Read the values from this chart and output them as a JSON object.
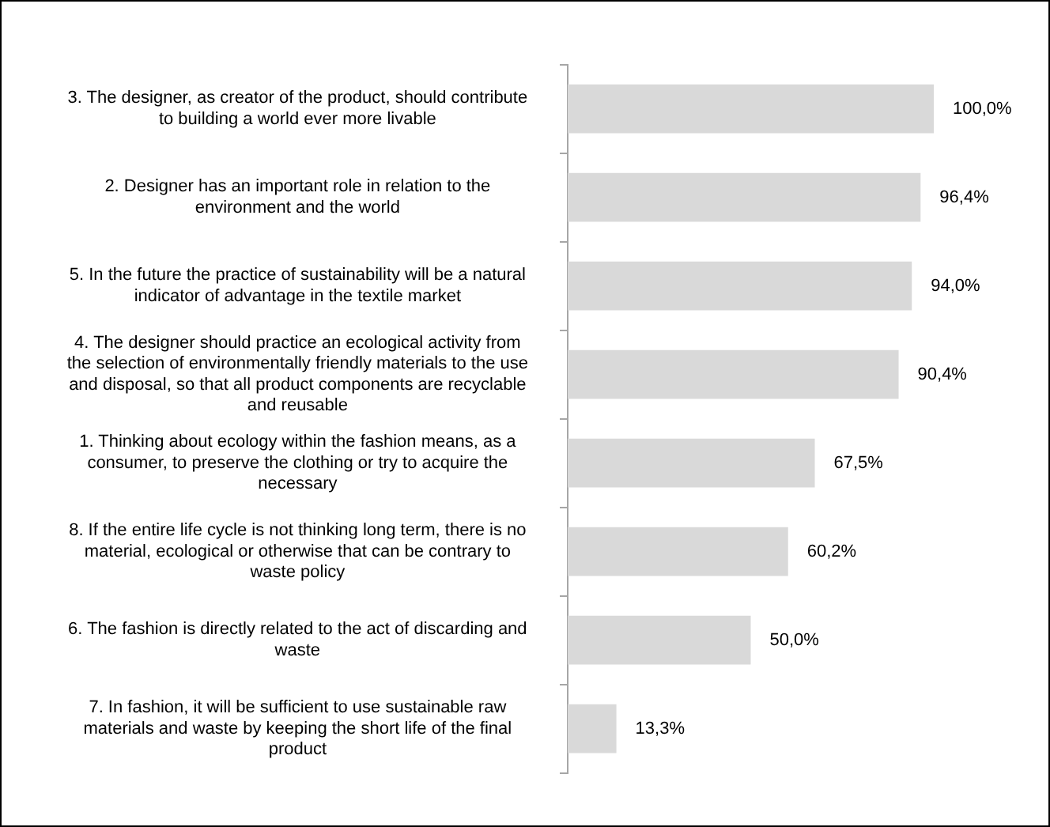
{
  "chart_data": {
    "type": "bar",
    "orientation": "horizontal",
    "categories": [
      "3. The designer, as creator of the product, should contribute to building a world ever more livable",
      "2. Designer has an important role in relation to the environment and the world",
      "5. In the future the practice of sustainability will be a natural indicator of advantage in the textile market",
      "4. The designer should practice an ecological activity from the selection of environmentally friendly materials to the use and disposal, so that all product components are recyclable and reusable",
      "1. Thinking about ecology within the fashion means, as a consumer, to preserve the clothing or try to acquire the necessary",
      "8. If the entire life cycle is not thinking long term, there is no material, ecological or otherwise that can be contrary to waste policy",
      "6. The fashion is directly related to the act of discarding and waste",
      "7. In fashion, it will be sufficient to use sustainable raw materials and waste by keeping the short life of the final product"
    ],
    "values": [
      100,
      96.4,
      94.0,
      90.4,
      67.5,
      60.2,
      50.0,
      13.3
    ],
    "value_labels": [
      "100,0%",
      "96,4%",
      "94,0%",
      "90,4%",
      "67,5%",
      "60,2%",
      "50,0%",
      "13,3%"
    ],
    "color": "#d9d9d9",
    "legend": false
  }
}
